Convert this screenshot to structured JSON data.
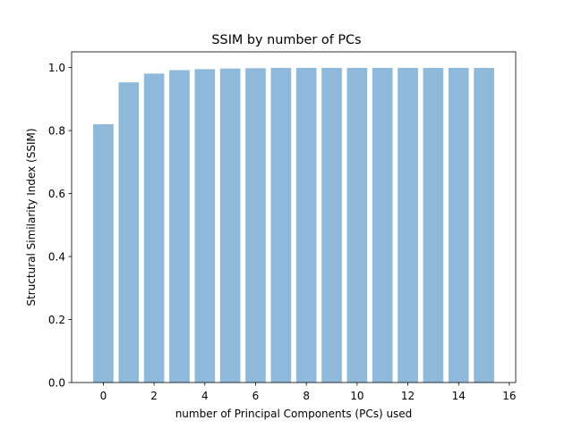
{
  "chart_data": {
    "type": "bar",
    "title": "SSIM by number of PCs",
    "xlabel": "number of Principal Components (PCs) used",
    "ylabel": "Structural Similarity Index (SSIM)",
    "categories": [
      0,
      1,
      2,
      3,
      4,
      5,
      6,
      7,
      8,
      9,
      10,
      11,
      12,
      13,
      14,
      15
    ],
    "values": [
      0.82,
      0.953,
      0.981,
      0.992,
      0.995,
      0.997,
      0.998,
      0.999,
      0.999,
      0.999,
      0.999,
      0.999,
      0.999,
      0.999,
      0.999,
      0.999
    ],
    "xlim": [
      -1.25,
      16.25
    ],
    "ylim": [
      0,
      1.05
    ],
    "xticks": [
      "0",
      "2",
      "4",
      "6",
      "8",
      "10",
      "12",
      "14",
      "16"
    ],
    "yticks": [
      "0.0",
      "0.2",
      "0.4",
      "0.6",
      "0.8",
      "1.0"
    ],
    "bar_color": "#8fb9da",
    "grid": false
  }
}
